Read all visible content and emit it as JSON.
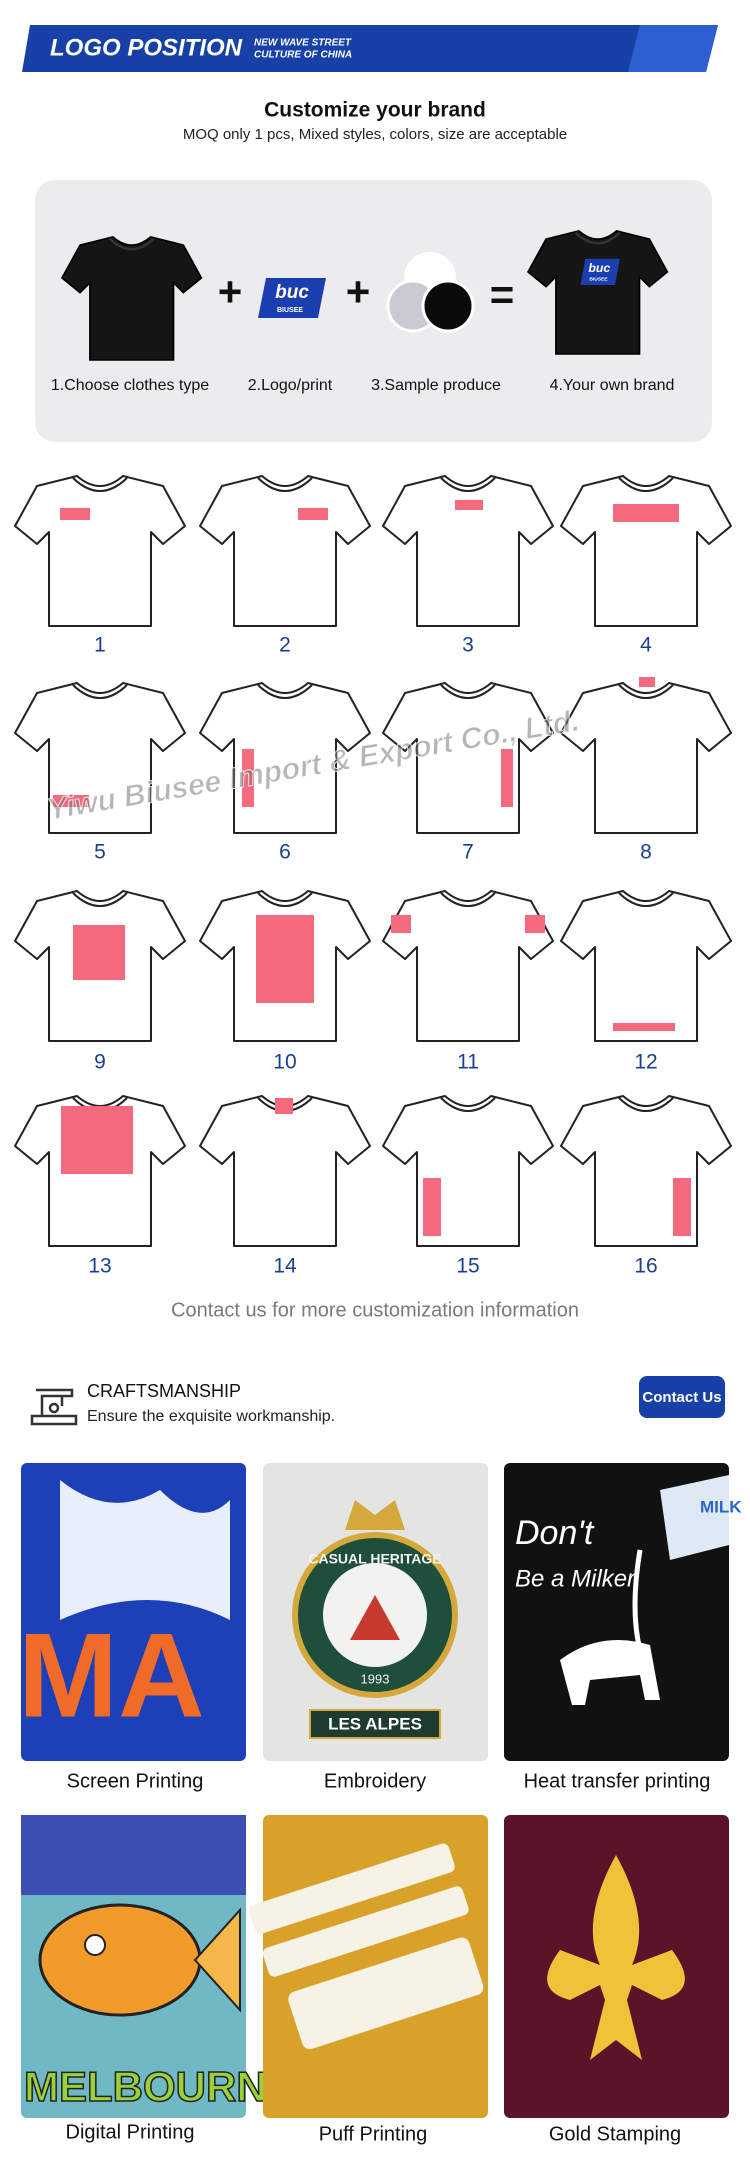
{
  "header": {
    "title": "LOGO POSITION",
    "tagline": [
      "NEW WAVE STREET",
      "CULTURE OF CHINA"
    ]
  },
  "intro": {
    "title": "Customize your brand",
    "subtitle": "MOQ only 1 pcs, Mixed styles, colors, size are acceptable"
  },
  "steps": {
    "logo_text": "buc",
    "logo_brand": "BIUSEE",
    "items": [
      "1.Choose clothes type",
      "2.Logo/print",
      "3.Sample produce",
      "4.Your own brand"
    ]
  },
  "positions": [
    1,
    2,
    3,
    4,
    5,
    6,
    7,
    8,
    9,
    10,
    11,
    12,
    13,
    14,
    15,
    16
  ],
  "watermark": "Yiwu Biusee Import & Export Co., Ltd.",
  "contact_note": "Contact us for more customization information",
  "crafts": {
    "title": "CRAFTSMANSHIP",
    "subtitle": "Ensure the exquisite workmanship.",
    "button": "Contact Us",
    "items": [
      {
        "label": "Screen Printing",
        "photo_text": [
          "MA"
        ]
      },
      {
        "label": "Embroidery",
        "photo_text": [
          "CASUAL HERITAGE",
          "1993",
          "LES ALPES"
        ]
      },
      {
        "label": "Heat transfer printing",
        "photo_text": [
          "Don't",
          "Be a Milker",
          "MILK"
        ]
      },
      {
        "label": "Digital Printing",
        "photo_text": [
          "MELBOURN"
        ]
      },
      {
        "label": "Puff Printing"
      },
      {
        "label": "Gold Stamping"
      }
    ]
  }
}
